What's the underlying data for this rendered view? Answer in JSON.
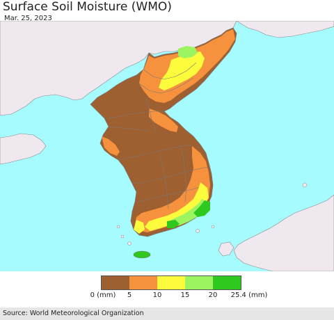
{
  "header": {
    "title": "Surface Soil Moisture (WMO)",
    "date": "Mar. 25, 2023"
  },
  "colors": {
    "sea": "#a6fbff",
    "land_no_data": "#efe8ee",
    "border": "#7a7a7a"
  },
  "legend": {
    "swatches": [
      {
        "color": "#9e6031",
        "range": "0–5"
      },
      {
        "color": "#f6923d",
        "range": "5–10"
      },
      {
        "color": "#fcfc3c",
        "range": "10–15"
      },
      {
        "color": "#9cf560",
        "range": "15–20"
      },
      {
        "color": "#2ec81e",
        "range": "20–25.4"
      }
    ],
    "labels": [
      "0 (mm)",
      "5",
      "10",
      "15",
      "20",
      "25.4 (mm)"
    ]
  },
  "footer": {
    "source": "Source: World Meteorological Organization"
  }
}
